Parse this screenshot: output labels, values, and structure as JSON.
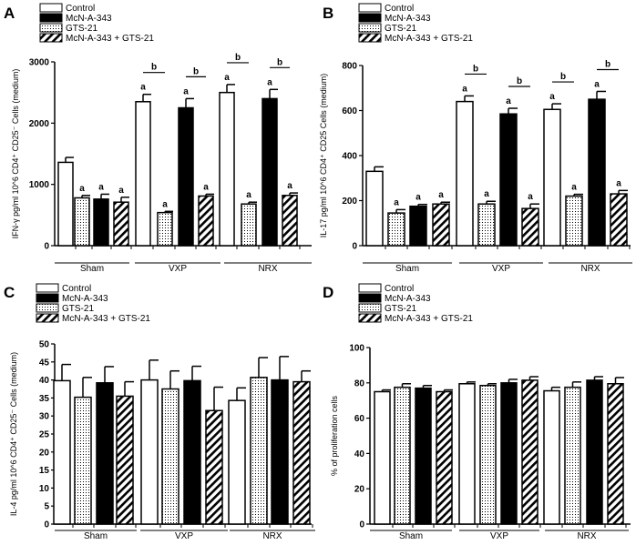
{
  "legend": {
    "colors": {
      "control": "#ffffff",
      "mcn": "#000000",
      "gts": "dots",
      "combo": "hatch"
    }
  },
  "chart_data": [
    {
      "panel": "A",
      "type": "bar",
      "legend": [
        "Control",
        "McN-A-343",
        "GTS-21",
        "McN-A-343 + GTS-21"
      ],
      "groups": [
        "Sham",
        "VXP",
        "NRX"
      ],
      "subgroups": [
        [
          "Control",
          "GTS-21",
          "McN-A-343",
          "McN-A-343 + GTS-21"
        ],
        [
          "Control",
          "GTS-21",
          "McN-A-343",
          "McN-A-343 + GTS-21"
        ],
        [
          "Control",
          "GTS-21",
          "McN-A-343",
          "McN-A-343 + GTS-21"
        ]
      ],
      "values": [
        [
          1360,
          780,
          760,
          710
        ],
        [
          2350,
          540,
          2250,
          810
        ],
        [
          2500,
          680,
          2400,
          820
        ]
      ],
      "errors": [
        [
          80,
          40,
          80,
          80
        ],
        [
          120,
          20,
          150,
          30
        ],
        [
          130,
          30,
          150,
          40
        ]
      ],
      "sig_a": [
        [
          false,
          true,
          true,
          true
        ],
        [
          true,
          true,
          true,
          true
        ],
        [
          true,
          true,
          true,
          true
        ]
      ],
      "sig_b": [
        [
          [
            0,
            1
          ],
          [
            2,
            3
          ]
        ],
        [
          [
            0,
            1
          ],
          [
            2,
            3
          ]
        ]
      ],
      "b_label": "b",
      "a_label": "a",
      "ylabel": "IFN-γ pg/ml 10^6 CD4⁺ CD25⁻ Cells (medium)",
      "ylim": [
        0,
        3000
      ],
      "yticks": [
        "0",
        "1000",
        "2000",
        "3000"
      ],
      "ytick_values": [
        0,
        1000,
        2000,
        3000
      ]
    },
    {
      "panel": "B",
      "type": "bar",
      "legend": [
        "Control",
        "McN-A-343",
        "GTS-21",
        "McN-A-343 + GTS-21"
      ],
      "groups": [
        "Sham",
        "VXP",
        "NRX"
      ],
      "subgroups": [
        [
          "Control",
          "GTS-21",
          "McN-A-343",
          "McN-A-343 + GTS-21"
        ],
        [
          "Control",
          "GTS-21",
          "McN-A-343",
          "McN-A-343 + GTS-21"
        ],
        [
          "Control",
          "GTS-21",
          "McN-A-343",
          "McN-A-343 + GTS-21"
        ]
      ],
      "values": [
        [
          330,
          145,
          175,
          185
        ],
        [
          640,
          185,
          585,
          165
        ],
        [
          605,
          220,
          650,
          230
        ]
      ],
      "errors": [
        [
          20,
          15,
          8,
          8
        ],
        [
          25,
          12,
          25,
          20
        ],
        [
          25,
          8,
          35,
          15
        ]
      ],
      "sig_a": [
        [
          false,
          true,
          true,
          true
        ],
        [
          true,
          true,
          true,
          true
        ],
        [
          true,
          true,
          true,
          true
        ]
      ],
      "sig_b": [
        [
          [
            0,
            1
          ],
          [
            2,
            3
          ]
        ],
        [
          [
            0,
            1
          ],
          [
            2,
            3
          ]
        ]
      ],
      "b_label": "b",
      "a_label": "a",
      "ylabel": "IL-17 pg/ml 10^6 CD4⁺ CD25 Cells (medium)",
      "ylim": [
        0,
        800
      ],
      "yticks": [
        "0",
        "200",
        "400",
        "600",
        "800"
      ],
      "ytick_values": [
        0,
        200,
        400,
        600,
        800
      ]
    },
    {
      "panel": "C",
      "type": "bar",
      "legend": [
        "Control",
        "McN-A-343",
        "GTS-21",
        "McN-A-343 + GTS-21"
      ],
      "groups": [
        "Sham",
        "VXP",
        "NRX"
      ],
      "subgroups": [
        [
          "Control",
          "GTS-21",
          "McN-A-343",
          "McN-A-343 + GTS-21"
        ],
        [
          "Control",
          "GTS-21",
          "McN-A-343",
          "McN-A-343 + GTS-21"
        ],
        [
          "Control",
          "GTS-21",
          "McN-A-343",
          "McN-A-343 + GTS-21"
        ]
      ],
      "values": [
        [
          39.8,
          35.2,
          39.2,
          35.5
        ],
        [
          40.0,
          37.5,
          39.8,
          31.5
        ],
        [
          34.3,
          40.7,
          40.0,
          39.5
        ]
      ],
      "errors": [
        [
          4.5,
          5.5,
          4.5,
          4.0
        ],
        [
          5.5,
          5.0,
          4.0,
          6.5
        ],
        [
          3.5,
          5.5,
          6.5,
          3.0
        ]
      ],
      "ylabel": "IL-4 pg/ml 10^6 CD4⁺ CD25⁻ Cells (medium)",
      "ylim": [
        0,
        50
      ],
      "yticks": [
        "0",
        "5",
        "10",
        "15",
        "20",
        "25",
        "30",
        "35",
        "40",
        "45",
        "50"
      ],
      "ytick_values": [
        0,
        5,
        10,
        15,
        20,
        25,
        30,
        35,
        40,
        45,
        50
      ]
    },
    {
      "panel": "D",
      "type": "bar",
      "legend": [
        "Control",
        "McN-A-343",
        "GTS-21",
        "McN-A-343 + GTS-21"
      ],
      "groups": [
        "Sham",
        "VXP",
        "NRX"
      ],
      "subgroups": [
        [
          "Control",
          "GTS-21",
          "McN-A-343",
          "McN-A-343 + GTS-21"
        ],
        [
          "Control",
          "GTS-21",
          "McN-A-343",
          "McN-A-343 + GTS-21"
        ],
        [
          "Control",
          "GTS-21",
          "McN-A-343",
          "McN-A-343 + GTS-21"
        ]
      ],
      "values": [
        [
          75,
          77.5,
          77,
          75
        ],
        [
          79.5,
          78.5,
          80,
          81.5
        ],
        [
          75.5,
          77.5,
          81.5,
          79.5
        ]
      ],
      "errors": [
        [
          1,
          2,
          1.5,
          1
        ],
        [
          1,
          1,
          2,
          2
        ],
        [
          2,
          3,
          2,
          3.5
        ]
      ],
      "ylabel": "% of proliferation cells",
      "ylim": [
        0,
        100
      ],
      "yticks": [
        "0",
        "20",
        "40",
        "60",
        "80",
        "100"
      ],
      "ytick_values": [
        0,
        20,
        40,
        60,
        80,
        100
      ]
    }
  ]
}
